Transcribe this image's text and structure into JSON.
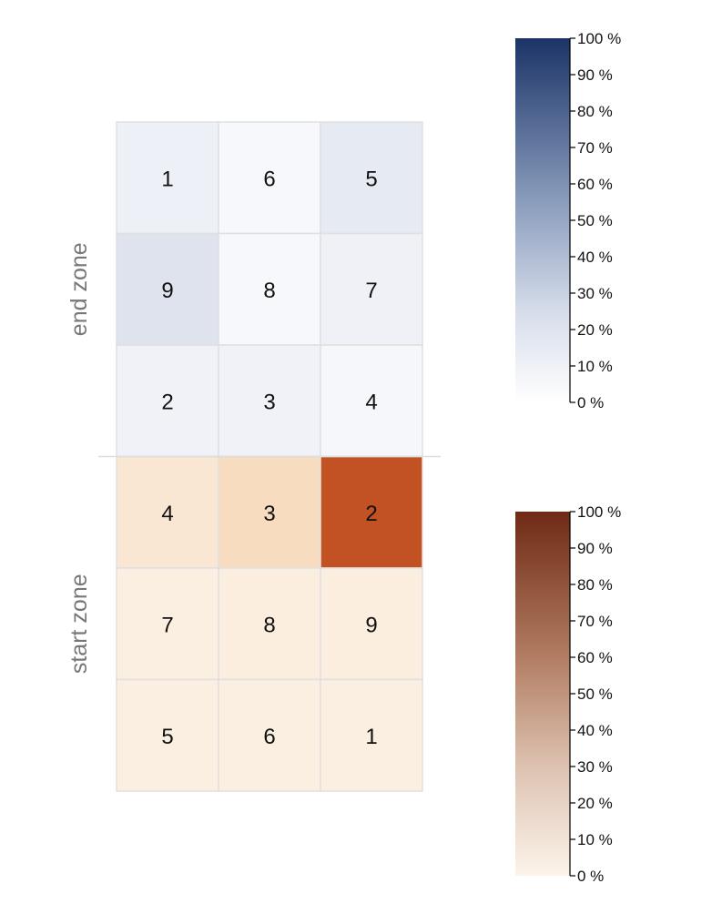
{
  "chart_data": {
    "type": "heatmap",
    "colors": {
      "end_low": "#ffffff",
      "end_high": "#1b3367",
      "start_low": "#fcf4eb",
      "start_high": "#6f2a14",
      "grid": "#e0e0e0",
      "divider": "#dddddd",
      "zone_text": "#777777"
    },
    "zones": [
      {
        "name": "end zone",
        "colormap": "blue",
        "rows": [
          {
            "labels": [
              "1",
              "6",
              "5"
            ],
            "values": [
              11,
              5,
              15
            ]
          },
          {
            "labels": [
              "9",
              "8",
              "7"
            ],
            "values": [
              20,
              5,
              10
            ]
          },
          {
            "labels": [
              "2",
              "3",
              "4"
            ],
            "values": [
              9,
              9,
              6
            ]
          }
        ]
      },
      {
        "name": "start zone",
        "colormap": "orange",
        "rows": [
          {
            "labels": [
              "4",
              "3",
              "2"
            ],
            "values": [
              8,
              15,
              65
            ]
          },
          {
            "labels": [
              "7",
              "8",
              "9"
            ],
            "values": [
              3,
              4,
              4
            ]
          },
          {
            "labels": [
              "5",
              "6",
              "1"
            ],
            "values": [
              3,
              3,
              3
            ]
          }
        ]
      }
    ],
    "colorbars": [
      {
        "colormap": "blue",
        "ticks": [
          "0 %",
          "10 %",
          "20 %",
          "30 %",
          "40 %",
          "50 %",
          "60 %",
          "70 %",
          "80 %",
          "90 %",
          "100 %"
        ],
        "range": [
          0,
          100
        ]
      },
      {
        "colormap": "orange",
        "ticks": [
          "0 %",
          "10 %",
          "20 %",
          "30 %",
          "40 %",
          "50 %",
          "60 %",
          "70 %",
          "80 %",
          "90 %",
          "100 %"
        ],
        "range": [
          0,
          100
        ]
      }
    ]
  }
}
